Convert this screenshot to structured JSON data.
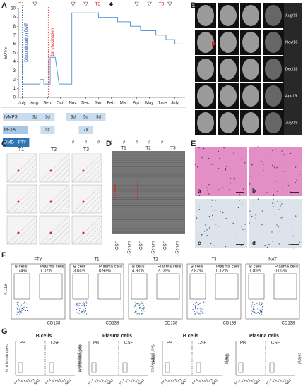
{
  "chart_data": {
    "type": "line",
    "letter": "A",
    "ylabel": "EDSS",
    "ylim": [
      0,
      10
    ],
    "yticks": [
      0,
      1,
      2,
      3,
      4,
      5,
      6,
      7,
      8,
      9,
      10
    ],
    "xlim": [
      -0.3,
      12.8
    ],
    "xticks": [
      {
        "value": 0,
        "label": "July"
      },
      {
        "value": 1,
        "label": "Aug."
      },
      {
        "value": 2,
        "label": "Sep."
      },
      {
        "value": 3,
        "label": "Oct."
      },
      {
        "value": 4,
        "label": "Nov."
      },
      {
        "value": 5,
        "label": "Dec."
      },
      {
        "value": 6,
        "label": "Jan."
      },
      {
        "value": 7,
        "label": "Feb."
      },
      {
        "value": 8,
        "label": "Mar."
      },
      {
        "value": 9,
        "label": "Apr."
      },
      {
        "value": 10,
        "label": "May"
      },
      {
        "value": 11,
        "label": "June"
      },
      {
        "value": 12,
        "label": "July"
      }
    ],
    "x": [
      0,
      1.4,
      1.4,
      1.7,
      1.7,
      2.2,
      2.2,
      2.6,
      2.9,
      3.9,
      3.9,
      6.0,
      6.0,
      7.5,
      7.5,
      8.5,
      8.5,
      9.3,
      9.3,
      10.5,
      10.5,
      11.3,
      11.3,
      12.0,
      12.0,
      12.6
    ],
    "values": [
      1.5,
      1.5,
      2,
      2,
      1.5,
      1.5,
      4.5,
      4.5,
      1.5,
      1.5,
      9.5,
      9.5,
      9,
      9,
      8.5,
      8.5,
      8,
      8,
      7.5,
      7.5,
      7,
      7,
      6.5,
      6.5,
      6,
      6
    ],
    "color": "#5b9bd5",
    "vlines": [
      {
        "x": 0,
        "label": "Discontinuation DMT",
        "color": "#1f4e9c"
      },
      {
        "x": 2.05,
        "label": "1st vaccination",
        "color": "#e02020"
      }
    ],
    "timepoints": [
      {
        "x": 0,
        "label": "T1"
      },
      {
        "x": 6,
        "label": "T2"
      },
      {
        "x": 11,
        "label": "T3"
      }
    ],
    "symbols": [
      {
        "x": 1,
        "label": "▽"
      },
      {
        "x": 4,
        "label": "▽"
      },
      {
        "x": 5,
        "label": "▽"
      },
      {
        "x": 7,
        "label": "◆"
      },
      {
        "x": 9,
        "label": "▽"
      },
      {
        "x": 10,
        "label": "▽"
      },
      {
        "x": 11.6,
        "label": "▽"
      }
    ],
    "treatments": [
      {
        "name": "IVMPS",
        "cells": [
          {
            "x": 1,
            "label": "3d"
          },
          {
            "x": 2,
            "label": "3d"
          },
          {
            "x": 4,
            "label": "3d"
          },
          {
            "x": 5,
            "label": "5d"
          },
          {
            "x": 6,
            "label": "3d"
          }
        ]
      },
      {
        "name": "PEXA",
        "cells": [
          {
            "x": 2,
            "label": "5x"
          },
          {
            "x": 5,
            "label": "7x"
          }
        ]
      },
      {
        "name": "DMD",
        "cells": [
          {
            "x": 0,
            "label": "FTY"
          },
          {
            "x": 4,
            "label": "#"
          },
          {
            "x": 5,
            "label": "#"
          },
          {
            "x": 6,
            "label": "#"
          },
          {
            "x": 7,
            "label": "#"
          },
          {
            "x": 8,
            "label": "#"
          },
          {
            "x": 9,
            "label": "#"
          },
          {
            "x": 10,
            "label": "#"
          },
          {
            "x": 11,
            "label": "#"
          }
        ]
      }
    ]
  },
  "panel_b": {
    "letter": "B",
    "rows": [
      "Aug/18",
      "Nov/18",
      "Dec/18",
      "Apr/19",
      "July/19"
    ]
  },
  "panel_c": {
    "letter": "C",
    "columns": [
      "T1",
      "T2",
      "T3"
    ]
  },
  "panel_d": {
    "letter": "D",
    "columns": [
      "T1",
      "T2",
      "T3"
    ],
    "lanes": [
      "CSF",
      "Serum",
      "CSF",
      "Serum",
      "CSF",
      "Serum"
    ]
  },
  "panel_e": {
    "letter": "E",
    "images": [
      "a",
      "b",
      "c",
      "d"
    ]
  },
  "panel_f": {
    "letter": "F",
    "yaxis": "CD19",
    "xaxis": "CD138",
    "plots": [
      {
        "title": "FTY",
        "b_cells": "B cells",
        "b_pct": "1.74%",
        "plasma": "Plasma cells",
        "p_pct": "1.07%"
      },
      {
        "title": "T1",
        "b_cells": "B cells",
        "b_pct": "3.04%",
        "plasma": "Plasma cells",
        "p_pct": "0.93%"
      },
      {
        "title": "T2",
        "b_cells": "B cells",
        "b_pct": "4.81%",
        "plasma": "Plasma cells",
        "p_pct": "2.18%"
      },
      {
        "title": "T3",
        "b_cells": "B cells",
        "b_pct": "2.82%",
        "plasma": "Plasma cells",
        "p_pct": "0.12%"
      },
      {
        "title": "NAT",
        "b_cells": "B cells",
        "b_pct": "1.85%",
        "plasma": "Plasma cells",
        "p_pct": "0.00%"
      }
    ]
  },
  "panel_g": {
    "letter": "G",
    "plots": [
      {
        "title": "B cells",
        "ylabel": "% of lymphocytes",
        "y2label": "% of lymphocytes"
      },
      {
        "title": "Plasma cells",
        "ylabel": "% of lymphocytes",
        "y2label": "% of lymphocytes"
      },
      {
        "title": "B cells",
        "ylabel": "cells/µl",
        "y2label": "cells/µl"
      },
      {
        "title": "Plasma cells",
        "ylabel": "cells/µl",
        "y2label": "cells/µl"
      }
    ],
    "groups": [
      "PB",
      "CSF"
    ],
    "xlabels": [
      "FTY",
      "T1",
      "T2",
      "T3",
      "NAT"
    ]
  }
}
